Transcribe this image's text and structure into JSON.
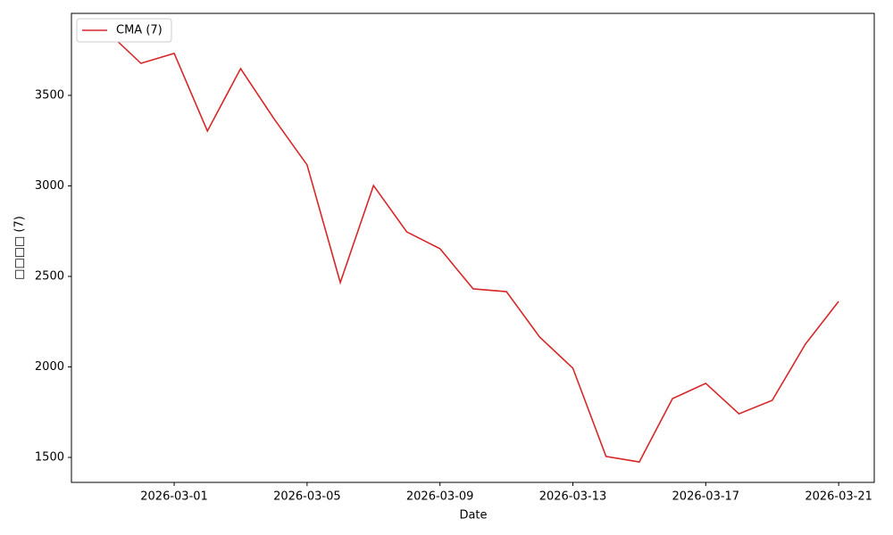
{
  "chart_data": {
    "type": "line",
    "xlabel": "Date",
    "ylabel": "□□□□ (7)",
    "x": [
      "2026-02-27",
      "2026-02-28",
      "2026-03-01",
      "2026-03-02",
      "2026-03-03",
      "2026-03-04",
      "2026-03-05",
      "2026-03-06",
      "2026-03-07",
      "2026-03-08",
      "2026-03-09",
      "2026-03-10",
      "2026-03-11",
      "2026-03-12",
      "2026-03-13",
      "2026-03-14",
      "2026-03-15",
      "2026-03-16",
      "2026-03-17",
      "2026-03-18",
      "2026-03-19",
      "2026-03-20",
      "2026-03-21"
    ],
    "series": [
      {
        "name": "CMA (7)",
        "color": "#d62728",
        "values": [
          3850,
          3677,
          3732,
          3303,
          3648,
          3372,
          3116,
          2466,
          3002,
          2746,
          2653,
          2431,
          2416,
          2165,
          1993,
          1505,
          1475,
          1825,
          1909,
          1741,
          1815,
          2126,
          2362
        ]
      }
    ],
    "xlim": [
      "2026-02-25T21:47Z",
      "2026-03-22T01:43Z"
    ],
    "xticks": [
      "2026-03-01",
      "2026-03-05",
      "2026-03-09",
      "2026-03-13",
      "2026-03-17",
      "2026-03-21"
    ],
    "ylim": [
      1362,
      3953
    ],
    "yticks": [
      1500,
      2000,
      2500,
      3000,
      3500
    ],
    "grid": false,
    "legend": "upper-left"
  }
}
